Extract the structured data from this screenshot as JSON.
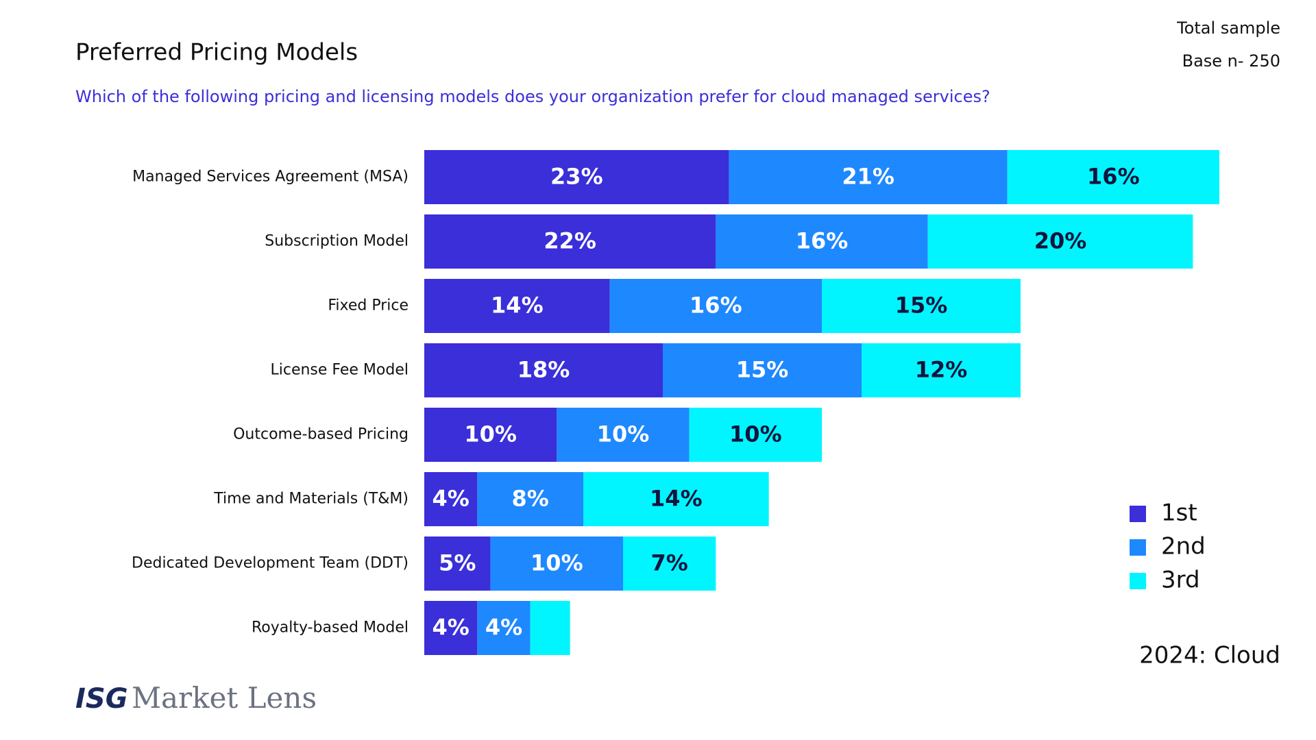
{
  "chart_data": {
    "type": "stacked-bar-horizontal",
    "title": "Preferred Pricing Models",
    "subtitle": "Which of the following pricing and licensing models does your organization prefer for cloud managed services?",
    "sample_title": "Total sample",
    "sample_base": "Base n- 250",
    "annotation": "2024: Cloud",
    "legend": "right",
    "categories": [
      "Managed Services Agreement (MSA)",
      "Subscription Model",
      "Fixed Price",
      "License Fee Model",
      "Outcome-based Pricing",
      "Time and Materials (T&M)",
      "Dedicated Development Team (DDT)",
      "Royalty-based Model"
    ],
    "series": [
      {
        "name": "1st",
        "color": "#3a2fd8",
        "label_color": "#ffffff",
        "values": [
          23,
          22,
          14,
          18,
          10,
          4,
          5,
          4
        ],
        "value_labels": [
          "23%",
          "22%",
          "14%",
          "18%",
          "10%",
          "4%",
          "5%",
          "4%"
        ]
      },
      {
        "name": "2nd",
        "color": "#1e88ff",
        "label_color": "#ffffff",
        "values": [
          21,
          16,
          16,
          15,
          10,
          8,
          10,
          4
        ],
        "value_labels": [
          "21%",
          "16%",
          "16%",
          "15%",
          "10%",
          "8%",
          "10%",
          "4%"
        ]
      },
      {
        "name": "3rd",
        "color": "#00f5ff",
        "label_color": "#14143c",
        "values": [
          16,
          20,
          15,
          12,
          10,
          14,
          7,
          3
        ],
        "value_labels": [
          "16%",
          "20%",
          "15%",
          "12%",
          "10%",
          "14%",
          "7%",
          null
        ]
      }
    ]
  },
  "footer": {
    "brand": "ISG",
    "product": "Market Lens"
  }
}
